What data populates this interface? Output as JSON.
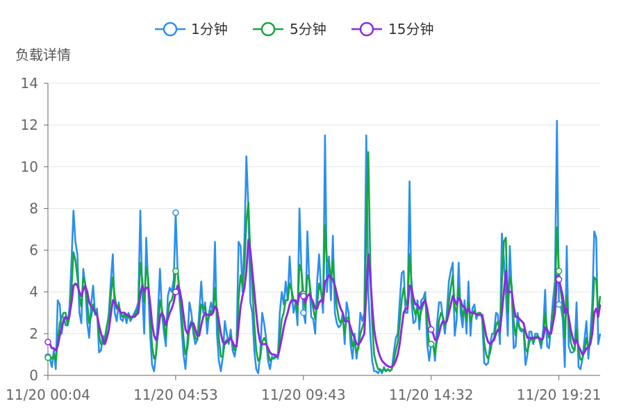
{
  "chart_data": {
    "type": "line",
    "ylabel": "负载详情",
    "ylim": [
      0,
      14
    ],
    "y_ticks": [
      0,
      2,
      4,
      6,
      8,
      10,
      12,
      14
    ],
    "x_tick_labels": [
      "11/20 00:04",
      "11/20 04:53",
      "11/20 09:43",
      "11/20 14:32",
      "11/20 19:21"
    ],
    "legend_position": "top-center",
    "grid": true,
    "series": [
      {
        "name": "1分钟",
        "color": "#2a8ff0",
        "values": [
          0.9,
          0.8,
          0.4,
          1.2,
          0.3,
          3.6,
          3.4,
          2.0,
          2.8,
          2.4,
          2.4,
          3.3,
          5.5,
          7.9,
          6.4,
          5.8,
          3.0,
          2.5,
          5.1,
          4.3,
          2.5,
          1.8,
          3.4,
          4.3,
          2.9,
          3.2,
          1.1,
          1.2,
          1.9,
          1.7,
          2.3,
          3.0,
          4.5,
          5.8,
          3.0,
          2.6,
          3.5,
          2.7,
          2.6,
          3.0,
          2.5,
          3.0,
          2.6,
          2.8,
          3.0,
          3.2,
          3.5,
          7.9,
          4.0,
          2.0,
          6.6,
          4.3,
          2.0,
          0.5,
          0.2,
          1.0,
          3.0,
          5.1,
          3.0,
          2.1,
          1.4,
          3.8,
          4.2,
          4.0,
          4.6,
          7.8,
          5.0,
          3.6,
          2.3,
          1.0,
          0.3,
          1.7,
          3.5,
          3.0,
          2.0,
          1.5,
          1.7,
          3.0,
          4.5,
          3.0,
          3.5,
          2.0,
          3.0,
          3.5,
          3.0,
          6.4,
          2.0,
          0.7,
          0.2,
          0.9,
          2.6,
          2.0,
          1.5,
          2.2,
          1.2,
          0.9,
          1.5,
          6.4,
          6.2,
          4.0,
          6.5,
          10.5,
          8.0,
          3.5,
          3.0,
          1.2,
          0.3,
          0.1,
          1.0,
          3.0,
          2.5,
          1.8,
          0.7,
          0.3,
          0.9,
          0.8,
          1.0,
          0.8,
          3.0,
          4.0,
          3.4,
          4.5,
          3.6,
          5.7,
          4.0,
          3.0,
          3.5,
          2.4,
          8.0,
          5.0,
          3.0,
          2.5,
          6.9,
          4.5,
          2.8,
          2.7,
          2.0,
          4.5,
          5.8,
          4.0,
          3.0,
          11.5,
          4.0,
          5.7,
          3.6,
          6.7,
          3.0,
          2.5,
          2.3,
          2.4,
          3.0,
          1.5,
          3.5,
          3.0,
          1.5,
          0.8,
          2.0,
          0.8,
          1.5,
          3.0,
          2.6,
          3.0,
          11.5,
          4.0,
          2.0,
          0.7,
          0.2,
          0.2,
          0.1,
          0.3,
          0.1,
          0.4,
          0.2,
          0.3,
          0.2,
          0.3,
          1.1,
          1.8,
          2.0,
          3.5,
          4.9,
          5.0,
          3.0,
          3.0,
          9.3,
          3.5,
          2.5,
          2.6,
          3.6,
          2.2,
          3.6,
          3.7,
          4.0,
          1.5,
          0.7,
          1.5,
          1.5,
          0.7,
          2.5,
          3.5,
          3.5,
          2.7,
          2.0,
          3.0,
          4.5,
          5.0,
          5.4,
          1.9,
          2.7,
          5.4,
          3.0,
          2.3,
          3.6,
          2.0,
          4.5,
          1.9,
          3.2,
          3.4,
          2.7,
          3.0,
          3.0,
          2.7,
          0.6,
          0.5,
          0.6,
          1.5,
          2.0,
          2.0,
          3.0,
          2.9,
          1.5,
          6.8,
          5.6,
          4.0,
          1.9,
          6.2,
          4.0,
          1.3,
          1.4,
          3.0,
          2.2,
          2.1,
          2.2,
          0.5,
          1.0,
          2.1,
          2.1,
          1.5,
          2.0,
          2.0,
          1.7,
          1.3,
          2.2,
          4.1,
          1.4,
          1.3,
          2.4,
          3.6,
          4.5,
          12.2,
          3.4,
          3.3,
          2.7,
          0.4,
          6.2,
          1.4,
          1.1,
          1.1,
          1.2,
          3.5,
          0.4,
          0.3,
          0.8,
          1.7,
          2.6,
          0.8,
          2.0,
          3.5,
          6.9,
          6.6,
          1.5,
          2.0
        ]
      },
      {
        "name": "5分钟",
        "color": "#13a83a",
        "values": [
          0.85,
          0.9,
          0.8,
          1.0,
          0.7,
          1.6,
          2.5,
          2.8,
          3.0,
          3.0,
          2.4,
          2.8,
          4.2,
          5.9,
          5.5,
          4.7,
          3.8,
          3.3,
          4.7,
          4.4,
          3.5,
          2.5,
          2.8,
          3.4,
          3.0,
          3.0,
          1.9,
          1.5,
          1.5,
          1.8,
          2.4,
          2.7,
          3.8,
          4.7,
          3.8,
          3.2,
          3.4,
          3.0,
          2.8,
          2.9,
          2.8,
          2.8,
          2.7,
          2.8,
          2.9,
          3.0,
          3.3,
          5.4,
          4.6,
          3.5,
          5.2,
          4.7,
          3.0,
          1.4,
          0.8,
          1.0,
          2.0,
          3.6,
          3.2,
          2.5,
          1.8,
          3.0,
          3.5,
          3.6,
          4.0,
          5.0,
          5.0,
          4.0,
          3.0,
          1.8,
          1.0,
          1.3,
          2.3,
          2.6,
          2.2,
          1.8,
          1.7,
          2.4,
          3.4,
          3.2,
          3.3,
          2.6,
          2.8,
          3.1,
          3.0,
          4.2,
          3.0,
          1.8,
          0.9,
          0.9,
          1.6,
          1.7,
          1.6,
          1.9,
          1.5,
          1.2,
          1.4,
          3.6,
          4.8,
          4.3,
          5.2,
          7.4,
          8.3,
          5.8,
          4.2,
          2.5,
          1.2,
          0.7,
          0.8,
          1.6,
          1.8,
          1.6,
          1.1,
          0.7,
          0.8,
          0.8,
          0.9,
          0.9,
          1.8,
          2.7,
          3.0,
          3.6,
          3.6,
          4.4,
          4.1,
          3.6,
          3.5,
          3.0,
          5.3,
          5.0,
          3.9,
          3.2,
          4.8,
          4.6,
          3.7,
          3.2,
          2.7,
          3.4,
          4.4,
          4.0,
          3.5,
          7.2,
          5.5,
          5.4,
          4.6,
          5.5,
          4.2,
          3.3,
          2.7,
          2.5,
          2.7,
          2.0,
          2.7,
          2.8,
          2.1,
          1.4,
          1.6,
          1.1,
          1.3,
          2.0,
          2.3,
          2.6,
          7.0,
          10.7,
          5.5,
          2.5,
          1.0,
          0.6,
          0.3,
          0.3,
          0.2,
          0.3,
          0.2,
          0.3,
          0.2,
          0.3,
          0.7,
          1.2,
          1.6,
          2.5,
          3.6,
          4.2,
          3.6,
          3.3,
          5.8,
          4.5,
          3.3,
          2.9,
          3.2,
          2.6,
          3.1,
          3.4,
          3.7,
          2.5,
          1.5,
          1.5,
          1.5,
          1.0,
          1.7,
          2.6,
          3.0,
          2.8,
          2.4,
          2.7,
          3.5,
          4.2,
          4.8,
          3.3,
          3.0,
          4.2,
          3.5,
          2.8,
          3.2,
          2.6,
          3.5,
          2.6,
          2.9,
          3.1,
          2.9,
          3.0,
          3.0,
          2.8,
          1.6,
          1.0,
          0.8,
          1.1,
          1.6,
          1.8,
          2.4,
          2.6,
          2.0,
          4.4,
          6.4,
          6.6,
          3.0,
          4.7,
          4.3,
          2.6,
          1.9,
          2.5,
          2.3,
          2.2,
          2.2,
          1.3,
          1.1,
          1.6,
          1.8,
          1.6,
          1.8,
          1.9,
          1.8,
          1.5,
          1.8,
          3.0,
          2.2,
          1.8,
          2.1,
          3.0,
          3.7,
          7.1,
          5.0,
          4.0,
          3.3,
          1.8,
          3.8,
          2.6,
          1.6,
          1.3,
          1.2,
          2.2,
          1.2,
          0.75,
          0.8,
          1.2,
          1.8,
          1.3,
          1.7,
          2.6,
          4.7,
          4.6,
          3.0,
          3.8
        ]
      },
      {
        "name": "15分钟",
        "color": "#8a2be2",
        "values": [
          1.6,
          1.5,
          1.3,
          1.3,
          1.2,
          1.4,
          1.9,
          2.3,
          2.6,
          2.8,
          2.7,
          2.9,
          3.5,
          4.3,
          4.4,
          4.3,
          4.0,
          3.8,
          4.1,
          4.3,
          4.0,
          3.5,
          3.3,
          3.2,
          3.0,
          2.9,
          2.4,
          2.0,
          1.7,
          1.5,
          1.8,
          2.2,
          2.9,
          3.6,
          3.5,
          3.3,
          3.2,
          3.0,
          3.0,
          3.0,
          2.9,
          2.9,
          2.8,
          2.8,
          2.8,
          2.9,
          3.0,
          3.9,
          4.3,
          4.0,
          4.2,
          4.2,
          3.5,
          2.5,
          1.9,
          1.7,
          2.0,
          2.8,
          3.0,
          2.8,
          2.4,
          2.7,
          3.0,
          3.2,
          3.5,
          4.0,
          4.3,
          4.1,
          3.6,
          2.9,
          2.2,
          2.0,
          2.2,
          2.5,
          2.5,
          2.2,
          1.9,
          1.9,
          2.4,
          2.8,
          3.0,
          2.9,
          2.9,
          2.9,
          3.0,
          3.3,
          3.2,
          2.6,
          2.0,
          1.6,
          1.5,
          1.6,
          1.7,
          1.8,
          1.6,
          1.4,
          1.4,
          2.3,
          3.3,
          3.8,
          4.2,
          5.0,
          6.5,
          6.0,
          5.0,
          4.0,
          3.0,
          2.1,
          1.6,
          1.5,
          1.5,
          1.5,
          1.3,
          1.1,
          1.0,
          1.0,
          0.9,
          0.9,
          1.3,
          1.8,
          2.3,
          2.7,
          3.0,
          3.4,
          3.6,
          3.6,
          3.6,
          3.4,
          3.9,
          4.0,
          3.8,
          3.5,
          3.8,
          3.9,
          3.7,
          3.5,
          3.2,
          3.2,
          3.5,
          3.6,
          3.5,
          4.5,
          4.6,
          4.8,
          4.7,
          4.6,
          4.3,
          3.9,
          3.5,
          3.2,
          3.0,
          2.6,
          2.6,
          2.6,
          2.3,
          2.0,
          1.8,
          1.5,
          1.5,
          1.6,
          1.8,
          2.0,
          4.0,
          5.8,
          4.8,
          3.3,
          2.2,
          1.6,
          1.2,
          0.9,
          0.7,
          0.6,
          0.5,
          0.45,
          0.4,
          0.4,
          0.5,
          0.7,
          1.0,
          1.5,
          2.3,
          3.0,
          3.2,
          3.2,
          4.3,
          4.2,
          3.7,
          3.4,
          3.4,
          3.2,
          3.3,
          3.5,
          3.6,
          3.2,
          2.6,
          2.2,
          2.0,
          1.7,
          1.7,
          2.0,
          2.4,
          2.6,
          2.5,
          2.6,
          3.0,
          3.4,
          3.8,
          3.6,
          3.4,
          3.7,
          3.6,
          3.3,
          3.3,
          3.0,
          3.2,
          3.0,
          3.0,
          3.0,
          2.9,
          2.9,
          2.9,
          2.9,
          2.4,
          1.9,
          1.6,
          1.5,
          1.6,
          1.7,
          2.0,
          2.2,
          2.1,
          3.0,
          4.0,
          5.0,
          4.0,
          4.0,
          4.0,
          3.3,
          2.8,
          2.8,
          2.7,
          2.6,
          2.5,
          2.1,
          1.8,
          1.8,
          1.8,
          1.8,
          1.8,
          1.8,
          1.8,
          1.7,
          1.8,
          2.3,
          2.2,
          2.0,
          2.0,
          2.5,
          3.0,
          4.8,
          4.6,
          4.2,
          3.8,
          3.0,
          3.2,
          2.8,
          2.2,
          1.8,
          1.5,
          1.7,
          1.4,
          1.2,
          1.0,
          1.1,
          1.3,
          1.3,
          1.5,
          2.0,
          3.0,
          3.2,
          2.8,
          3.4
        ]
      }
    ]
  }
}
